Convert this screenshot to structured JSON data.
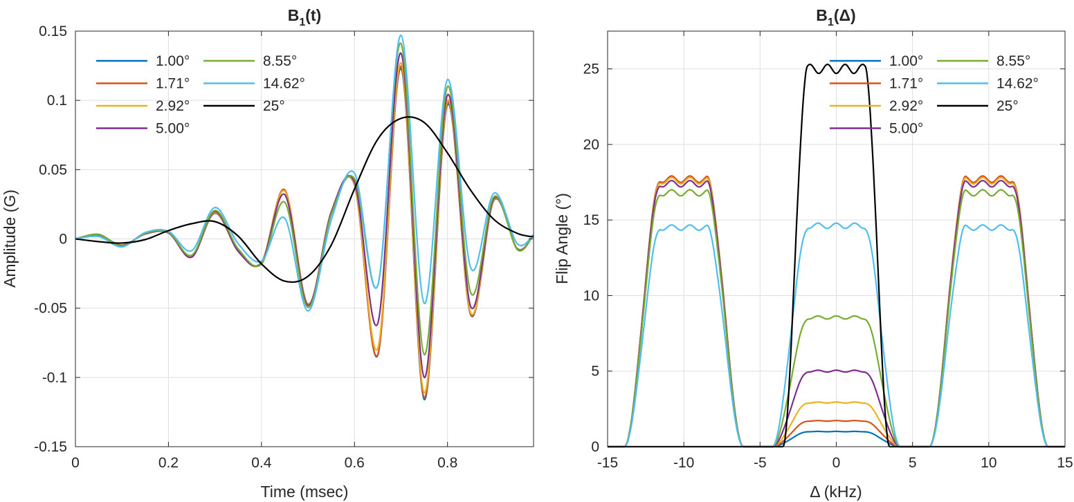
{
  "chart_data": [
    {
      "type": "line",
      "title_main": "B",
      "title_sub": "1",
      "title_tail": "(t)",
      "xlabel": "Time (msec)",
      "ylabel": "Amplitude (G)",
      "xlim": [
        0,
        0.985
      ],
      "ylim": [
        -0.15,
        0.15
      ],
      "xticks": [
        0,
        0.2,
        0.4,
        0.6,
        0.8
      ],
      "xtick_labels": [
        "0",
        "0.2",
        "0.4",
        "0.6",
        "0.8"
      ],
      "yticks": [
        -0.15,
        -0.1,
        -0.05,
        0,
        0.05,
        0.1,
        0.15
      ],
      "ytick_labels": [
        "-0.15",
        "-0.1",
        "-0.05",
        "0",
        "0.05",
        "0.1",
        "0.15"
      ],
      "grid": true,
      "legend_position": "top-left",
      "series": [
        {
          "name": "1.00°",
          "color": "#0072BD",
          "x": [
            0.0,
            0.05,
            0.1,
            0.15,
            0.2,
            0.25,
            0.3,
            0.35,
            0.4,
            0.45,
            0.5,
            0.55,
            0.6,
            0.65,
            0.7,
            0.75,
            0.8,
            0.85,
            0.9,
            0.95,
            0.985
          ],
          "y": [
            0.0,
            0.0028,
            -0.0045,
            0.0035,
            0.0042,
            -0.0125,
            0.0185,
            -0.0085,
            -0.017,
            0.035,
            -0.047,
            0.018,
            0.039,
            -0.084,
            0.123,
            -0.116,
            0.097,
            -0.055,
            0.028,
            -0.007,
            0.003
          ]
        },
        {
          "name": "1.71°",
          "color": "#D95319",
          "x": [
            0.0,
            0.05,
            0.1,
            0.15,
            0.2,
            0.25,
            0.3,
            0.35,
            0.4,
            0.45,
            0.5,
            0.55,
            0.6,
            0.65,
            0.7,
            0.75,
            0.8,
            0.85,
            0.9,
            0.95,
            0.985
          ],
          "y": [
            0.0,
            0.0029,
            -0.0046,
            0.0036,
            0.0043,
            -0.0127,
            0.0188,
            -0.0086,
            -0.0172,
            0.0355,
            -0.0472,
            0.0183,
            0.0393,
            -0.0835,
            0.1245,
            -0.1145,
            0.0985,
            -0.0545,
            0.0284,
            -0.0071,
            0.003
          ]
        },
        {
          "name": "2.92°",
          "color": "#EDB120",
          "x": [
            0.0,
            0.05,
            0.1,
            0.15,
            0.2,
            0.25,
            0.3,
            0.35,
            0.4,
            0.45,
            0.5,
            0.55,
            0.6,
            0.65,
            0.7,
            0.75,
            0.8,
            0.85,
            0.9,
            0.95,
            0.985
          ],
          "y": [
            0.0,
            0.003,
            -0.0047,
            0.0037,
            0.0044,
            -0.013,
            0.0192,
            -0.0088,
            -0.0172,
            0.0345,
            -0.0475,
            0.0188,
            0.0398,
            -0.079,
            0.127,
            -0.111,
            0.1,
            -0.0535,
            0.0288,
            -0.0072,
            0.003
          ]
        },
        {
          "name": "5.00°",
          "color": "#7E2F8E",
          "x": [
            0.0,
            0.05,
            0.1,
            0.15,
            0.2,
            0.25,
            0.3,
            0.35,
            0.4,
            0.45,
            0.5,
            0.55,
            0.6,
            0.65,
            0.7,
            0.75,
            0.8,
            0.85,
            0.9,
            0.95,
            0.985
          ],
          "y": [
            0.0,
            0.0031,
            -0.0049,
            0.0039,
            0.0046,
            -0.0132,
            0.0198,
            -0.009,
            -0.0175,
            0.032,
            -0.048,
            0.0193,
            0.0413,
            -0.061,
            0.134,
            -0.1,
            0.104,
            -0.049,
            0.0294,
            -0.0074,
            0.003
          ]
        },
        {
          "name": "8.55°",
          "color": "#77AC30",
          "x": [
            0.0,
            0.05,
            0.1,
            0.15,
            0.2,
            0.25,
            0.3,
            0.35,
            0.4,
            0.45,
            0.5,
            0.55,
            0.6,
            0.65,
            0.7,
            0.75,
            0.8,
            0.85,
            0.9,
            0.95,
            0.985
          ],
          "y": [
            0.0,
            0.0033,
            -0.0052,
            0.0041,
            0.0049,
            -0.0118,
            0.0205,
            -0.0072,
            -0.0182,
            0.0265,
            -0.0495,
            0.0175,
            0.0435,
            -0.0335,
            0.141,
            -0.0835,
            0.11,
            -0.039,
            0.0305,
            -0.0077,
            0.003
          ]
        },
        {
          "name": "14.62°",
          "color": "#4DBEEE",
          "x": [
            0.0,
            0.05,
            0.1,
            0.15,
            0.2,
            0.25,
            0.3,
            0.35,
            0.4,
            0.45,
            0.5,
            0.55,
            0.6,
            0.65,
            0.7,
            0.75,
            0.8,
            0.85,
            0.9,
            0.95,
            0.985
          ],
          "y": [
            0.0,
            0.0017,
            -0.0058,
            0.0046,
            0.0055,
            -0.0085,
            0.0226,
            -0.0035,
            -0.016,
            0.015,
            -0.052,
            0.0135,
            0.0475,
            -0.0335,
            0.147,
            -0.0465,
            0.115,
            -0.021,
            0.033,
            -0.0035,
            0.003
          ]
        },
        {
          "name": "25°",
          "color": "#000000",
          "x": [
            0.0,
            0.05,
            0.1,
            0.15,
            0.2,
            0.25,
            0.3,
            0.35,
            0.4,
            0.45,
            0.5,
            0.55,
            0.6,
            0.65,
            0.7,
            0.75,
            0.8,
            0.85,
            0.9,
            0.95,
            0.985
          ],
          "y": [
            0.0,
            -0.002,
            -0.003,
            -0.0005,
            0.006,
            0.011,
            0.0125,
            0.002,
            -0.018,
            -0.0305,
            -0.027,
            -0.0045,
            0.036,
            0.072,
            0.087,
            0.084,
            0.062,
            0.035,
            0.014,
            0.004,
            0.0015
          ]
        }
      ]
    },
    {
      "type": "line",
      "title_main": "B",
      "title_sub": "1",
      "title_tail": "(Δ)",
      "xlabel": "Δ (kHz)",
      "ylabel": "Flip Angle (°)",
      "xlim": [
        -15,
        15
      ],
      "ylim": [
        0,
        27.5
      ],
      "xticks": [
        -15,
        -10,
        -5,
        0,
        5,
        10,
        15
      ],
      "xtick_labels": [
        "-15",
        "-10",
        "-5",
        "0",
        "5",
        "10",
        "15"
      ],
      "yticks": [
        0,
        5,
        10,
        15,
        20,
        25
      ],
      "ytick_labels": [
        "0",
        "5",
        "10",
        "15",
        "20",
        "25"
      ],
      "grid": true,
      "legend_position": "top-right",
      "series": [
        {
          "name": "1.00°",
          "color": "#0072BD",
          "center_plateau": 1.0,
          "side_plateau": 17.7
        },
        {
          "name": "1.71°",
          "color": "#D95319",
          "center_plateau": 1.71,
          "side_plateau": 17.7
        },
        {
          "name": "2.92°",
          "color": "#EDB120",
          "center_plateau": 2.92,
          "side_plateau": 17.6
        },
        {
          "name": "5.00°",
          "color": "#7E2F8E",
          "center_plateau": 5.0,
          "side_plateau": 17.4
        },
        {
          "name": "8.55°",
          "color": "#77AC30",
          "center_plateau": 8.55,
          "side_plateau": 16.8
        },
        {
          "name": "14.62°",
          "color": "#4DBEEE",
          "center_plateau": 14.62,
          "side_plateau": 14.5
        },
        {
          "name": "25°",
          "color": "#000000",
          "center_plateau": 25.0,
          "side_plateau": 0
        }
      ]
    }
  ]
}
